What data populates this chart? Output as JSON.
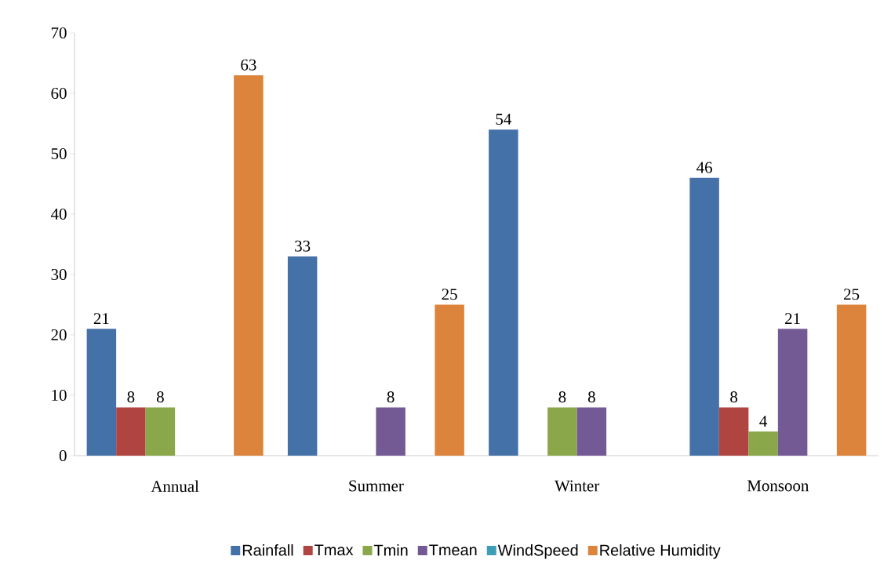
{
  "chart_data": {
    "type": "bar",
    "categories": [
      "Annual",
      "Summer",
      "Winter",
      "Monsoon"
    ],
    "series": [
      {
        "name": "Rainfall",
        "color": "#4472a8",
        "values": [
          21,
          33,
          54,
          46
        ]
      },
      {
        "name": "Tmax",
        "color": "#b04440",
        "values": [
          8,
          null,
          null,
          8
        ]
      },
      {
        "name": "Tmin",
        "color": "#8aa84a",
        "values": [
          8,
          null,
          8,
          4
        ]
      },
      {
        "name": "Tmean",
        "color": "#735a94",
        "values": [
          null,
          8,
          8,
          21
        ]
      },
      {
        "name": "WindSpeed",
        "color": "#3d9fb5",
        "values": [
          null,
          null,
          null,
          null
        ]
      },
      {
        "name": "Relative Humidity",
        "color": "#dd843c",
        "values": [
          63,
          25,
          null,
          25
        ]
      }
    ],
    "ylim": [
      0,
      70
    ],
    "yticks": [
      0,
      10,
      20,
      30,
      40,
      50,
      60,
      70
    ],
    "data_labels": true,
    "legend": "bottom",
    "grid": false
  }
}
